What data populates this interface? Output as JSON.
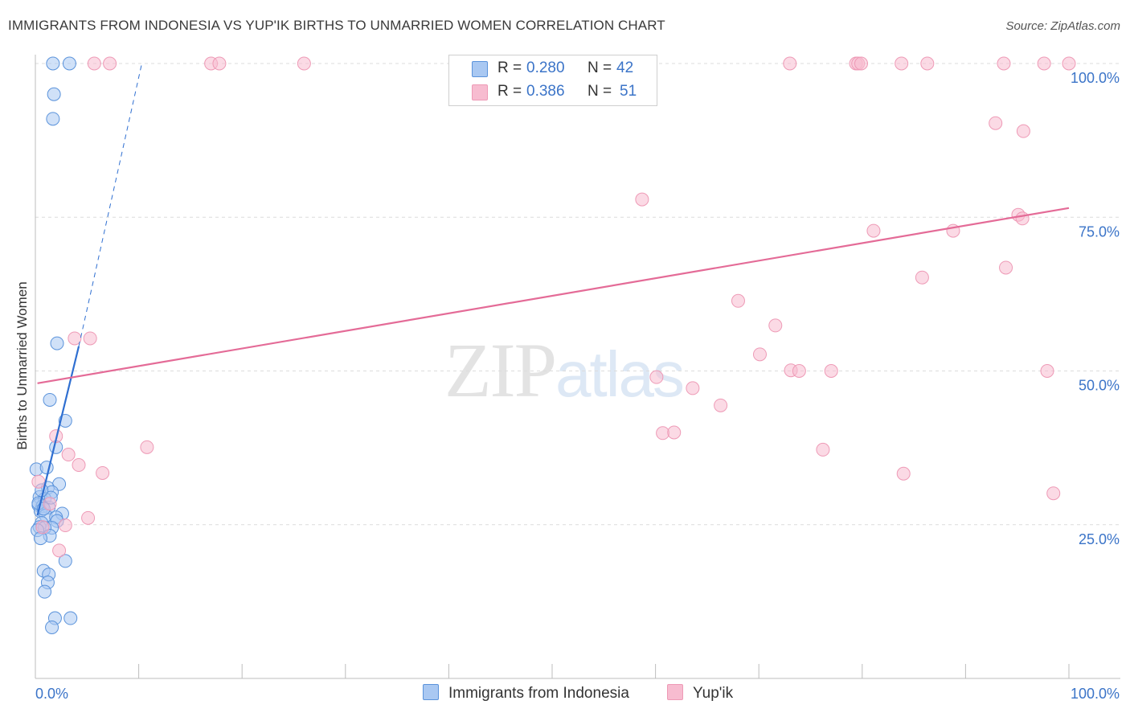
{
  "title": "IMMIGRANTS FROM INDONESIA VS YUP'IK BIRTHS TO UNMARRIED WOMEN CORRELATION CHART",
  "source": "Source: ZipAtlas.com",
  "watermark": {
    "zip": "ZIP",
    "atlas": "atlas"
  },
  "legend": {
    "rows": [
      {
        "r_label": "R =",
        "r_value": "0.280",
        "n_label": "N =",
        "n_value": "42",
        "color": "#a9c8f2"
      },
      {
        "r_label": "R =",
        "r_value": "0.386",
        "n_label": "N =",
        "n_value": "51",
        "color": "#f7bcd0"
      }
    ]
  },
  "bottom_legend": [
    {
      "label": "Immigrants from Indonesia",
      "color": "#a9c8f2"
    },
    {
      "label": "Yup'ik",
      "color": "#f7bcd0"
    }
  ],
  "chart_data": {
    "type": "scatter",
    "title": "IMMIGRANTS FROM INDONESIA VS YUP'IK BIRTHS TO UNMARRIED WOMEN CORRELATION CHART",
    "xlabel": "",
    "ylabel": "Births to Unmarried Women",
    "xlim": [
      0,
      100
    ],
    "ylim": [
      0,
      102
    ],
    "x_tick_labels": [
      "0.0%",
      "100.0%"
    ],
    "y_ticks": [
      25,
      50,
      75,
      100
    ],
    "y_tick_labels": [
      "25.0%",
      "50.0%",
      "75.0%",
      "100.0%"
    ],
    "grid": true,
    "series": [
      {
        "name": "Immigrants from Indonesia",
        "color": "#5b93db",
        "fill": "#a9c8f2",
        "line_color": "#2f6fd1",
        "trend_solid": [
          [
            0.2,
            26.5
          ],
          [
            4.2,
            54
          ]
        ],
        "trend_dashed": [
          [
            4.2,
            54
          ],
          [
            10.3,
            100
          ]
        ],
        "points": [
          [
            1.7,
            100
          ],
          [
            3.3,
            100
          ],
          [
            1.8,
            95
          ],
          [
            1.7,
            91
          ],
          [
            2.1,
            54.5
          ],
          [
            1.4,
            45.3
          ],
          [
            2.9,
            41.9
          ],
          [
            2.0,
            37.6
          ],
          [
            0.1,
            34
          ],
          [
            1.1,
            34.3
          ],
          [
            2.3,
            31.6
          ],
          [
            1.2,
            31
          ],
          [
            1.6,
            30.3
          ],
          [
            0.4,
            29.5
          ],
          [
            0.9,
            29.2
          ],
          [
            0.3,
            28.2
          ],
          [
            0.7,
            28
          ],
          [
            1.3,
            27.8
          ],
          [
            0.5,
            27.2
          ],
          [
            2.6,
            26.8
          ],
          [
            1.0,
            26.5
          ],
          [
            2.0,
            26.2
          ],
          [
            0.6,
            25.3
          ],
          [
            2.1,
            25.6
          ],
          [
            0.4,
            24.6
          ],
          [
            1.6,
            24.5
          ],
          [
            0.9,
            24.5
          ],
          [
            0.2,
            24.1
          ],
          [
            1.4,
            23.2
          ],
          [
            0.5,
            22.8
          ],
          [
            2.9,
            19.1
          ],
          [
            0.8,
            17.5
          ],
          [
            1.3,
            16.9
          ],
          [
            1.2,
            15.6
          ],
          [
            0.9,
            14.1
          ],
          [
            1.9,
            9.8
          ],
          [
            3.4,
            9.8
          ],
          [
            1.6,
            8.3
          ],
          [
            0.3,
            28.5
          ],
          [
            0.8,
            27.6
          ],
          [
            1.5,
            29.4
          ],
          [
            0.6,
            30.6
          ]
        ]
      },
      {
        "name": "Yup'ik",
        "color": "#ee9ab6",
        "fill": "#f7bcd0",
        "line_color": "#e46b97",
        "trend_solid": [
          [
            0.2,
            48
          ],
          [
            100,
            76.5
          ]
        ],
        "points": [
          [
            5.7,
            100
          ],
          [
            7.2,
            100
          ],
          [
            17.0,
            100
          ],
          [
            17.8,
            100
          ],
          [
            26.0,
            100
          ],
          [
            73.0,
            100
          ],
          [
            79.4,
            100
          ],
          [
            79.6,
            100
          ],
          [
            79.9,
            100
          ],
          [
            83.8,
            100
          ],
          [
            86.3,
            100
          ],
          [
            93.7,
            100
          ],
          [
            97.6,
            100
          ],
          [
            100,
            100
          ],
          [
            92.9,
            90.3
          ],
          [
            95.6,
            89
          ],
          [
            58.7,
            77.9
          ],
          [
            81.1,
            72.8
          ],
          [
            88.8,
            72.8
          ],
          [
            95.1,
            75.4
          ],
          [
            95.5,
            74.8
          ],
          [
            93.9,
            66.8
          ],
          [
            85.8,
            65.2
          ],
          [
            68.0,
            61.4
          ],
          [
            71.6,
            57.4
          ],
          [
            70.1,
            52.7
          ],
          [
            73.1,
            50.1
          ],
          [
            73.9,
            50
          ],
          [
            77.0,
            50
          ],
          [
            97.9,
            50
          ],
          [
            60.1,
            49
          ],
          [
            63.6,
            47.2
          ],
          [
            66.3,
            44.4
          ],
          [
            60.7,
            39.9
          ],
          [
            61.8,
            40
          ],
          [
            76.2,
            37.2
          ],
          [
            84.0,
            33.3
          ],
          [
            98.5,
            30.1
          ],
          [
            3.8,
            55.3
          ],
          [
            5.3,
            55.3
          ],
          [
            10.8,
            37.6
          ],
          [
            2.0,
            39.4
          ],
          [
            3.2,
            36.4
          ],
          [
            4.2,
            34.7
          ],
          [
            6.5,
            33.4
          ],
          [
            0.3,
            32
          ],
          [
            1.4,
            28.4
          ],
          [
            5.1,
            26.1
          ],
          [
            2.9,
            24.9
          ],
          [
            2.3,
            20.8
          ],
          [
            0.7,
            24.6
          ]
        ]
      }
    ]
  }
}
